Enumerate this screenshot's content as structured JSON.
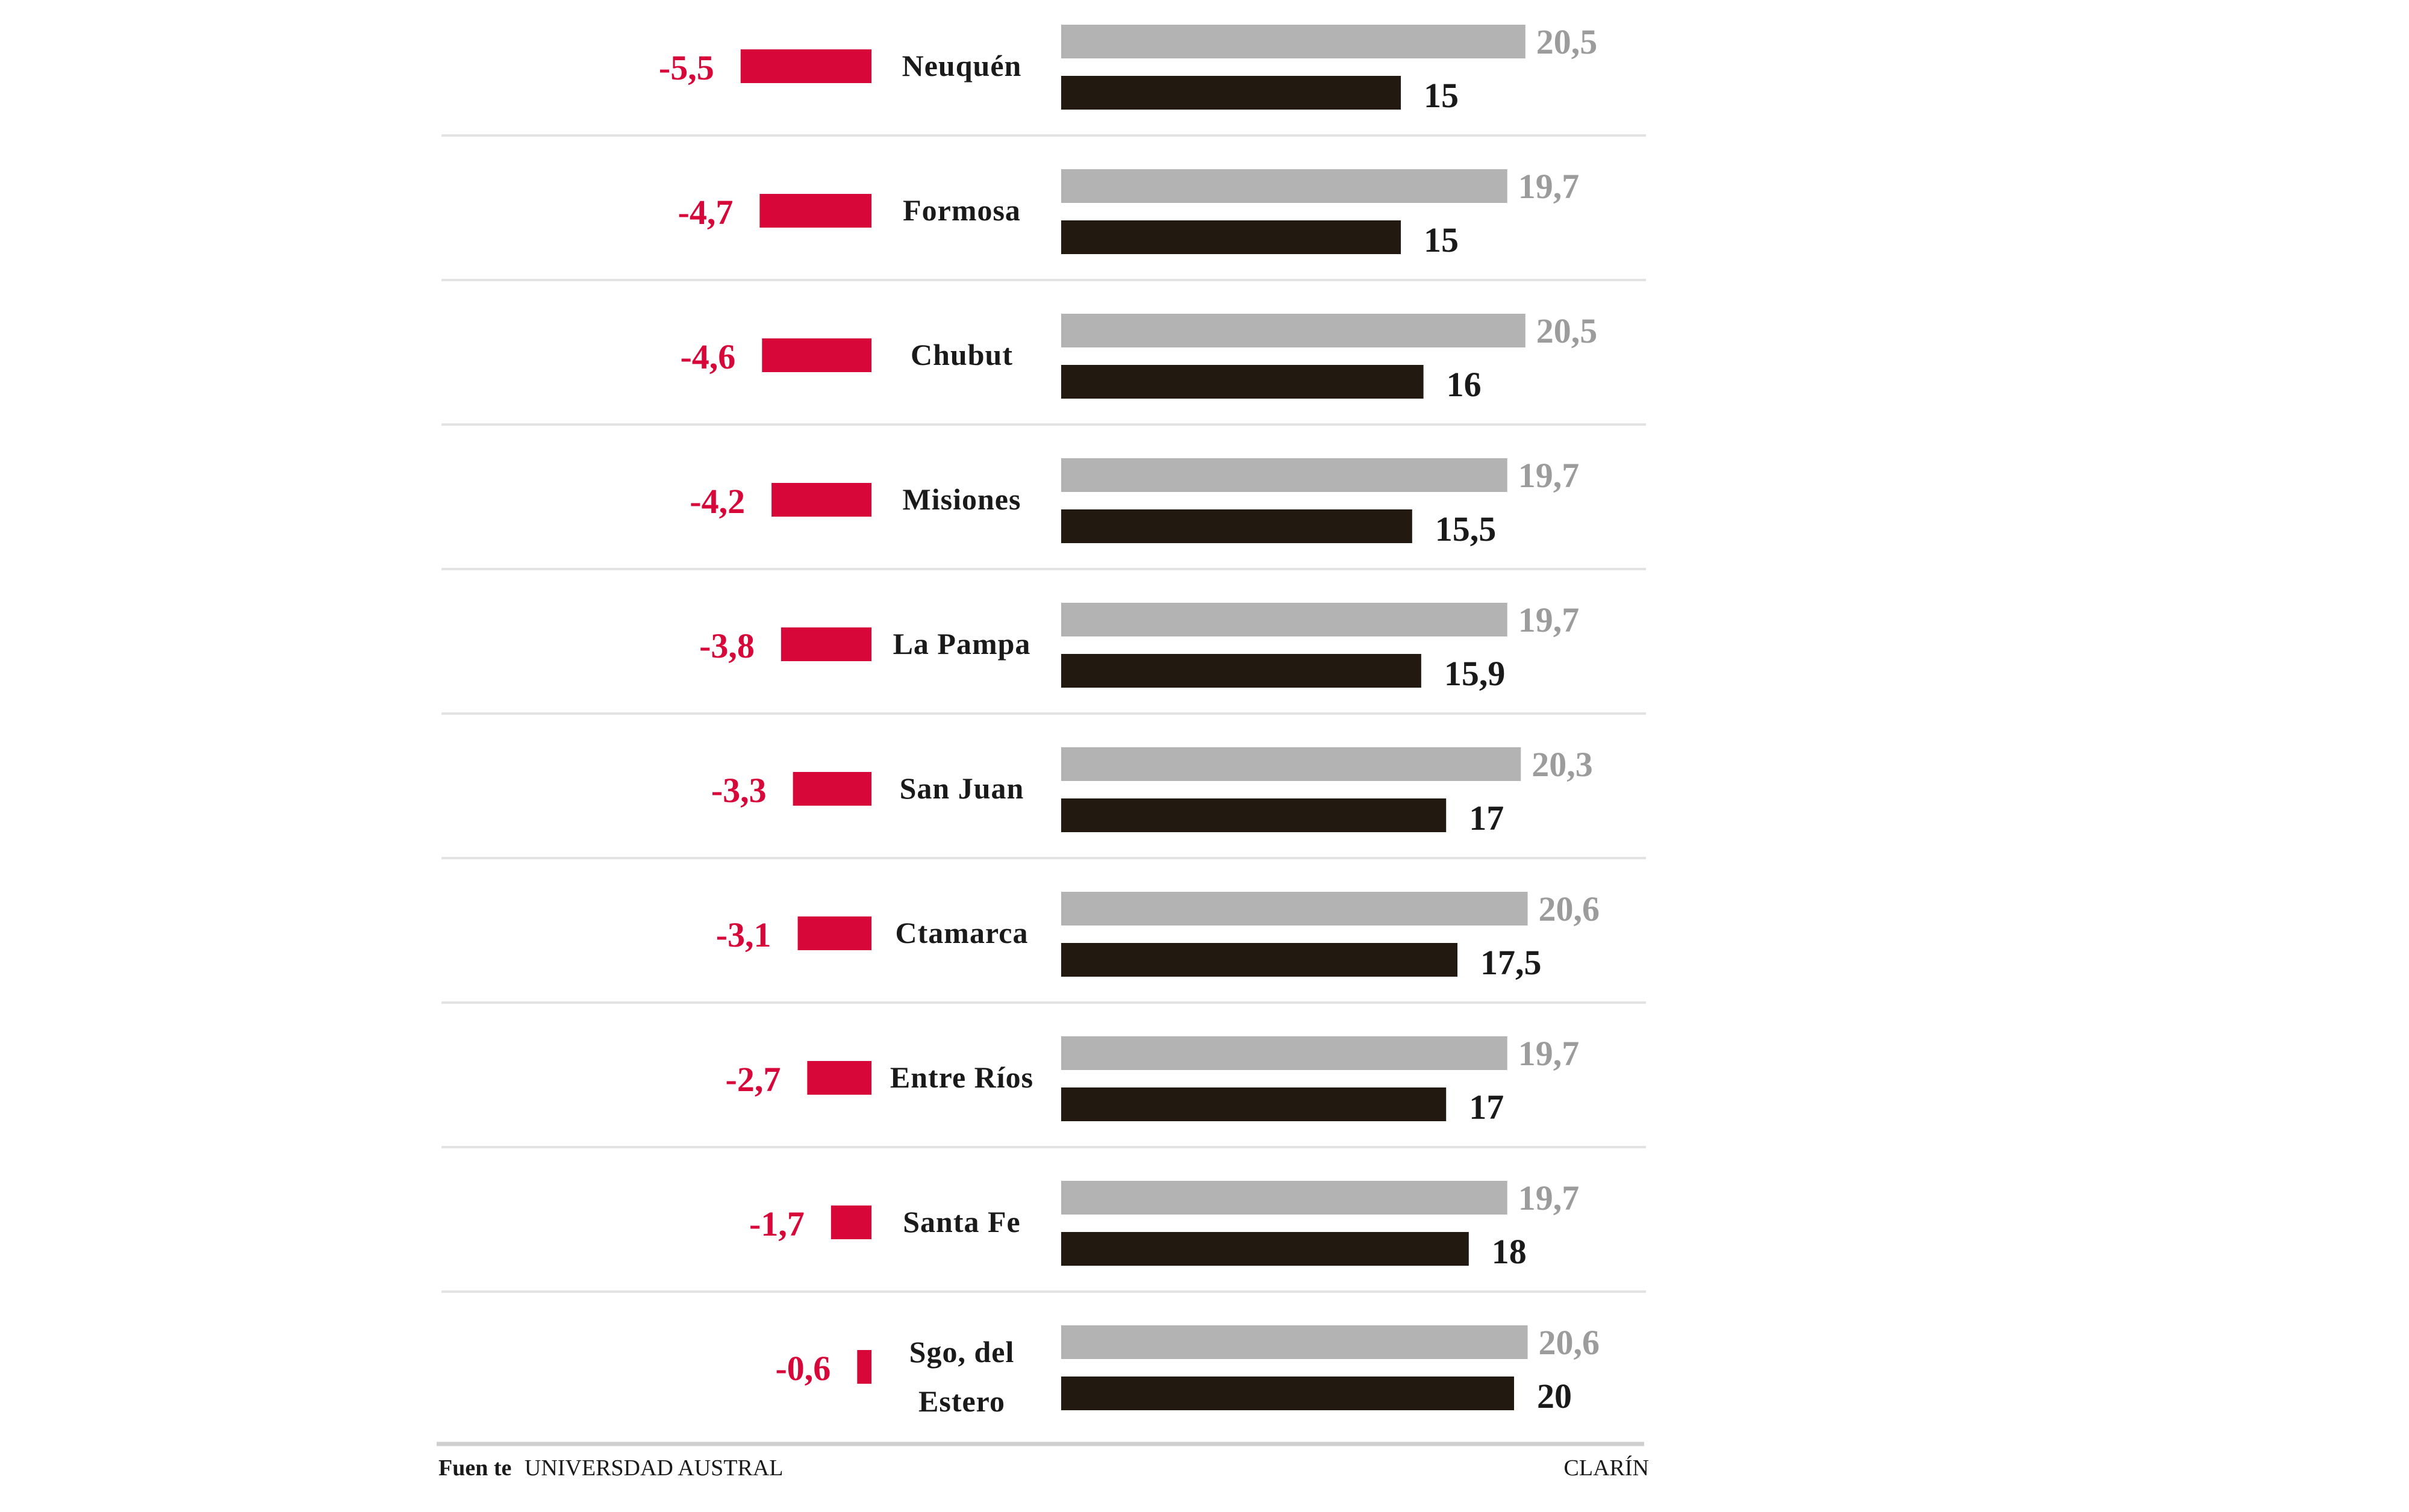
{
  "chart_data": {
    "type": "bar",
    "title": "",
    "categories": [
      [
        "Neuquén"
      ],
      [
        "Formosa"
      ],
      [
        "Chubut"
      ],
      [
        "Misiones"
      ],
      [
        "La Pampa"
      ],
      [
        "San Juan"
      ],
      [
        "Ctamarca"
      ],
      [
        "Entre Ríos"
      ],
      [
        "Santa  Fe"
      ],
      [
        "Sgo, del",
        "Estero"
      ]
    ],
    "series": [
      {
        "values": [
          -5.5,
          -4.7,
          -4.6,
          -4.2,
          -3.8,
          -3.3,
          -3.1,
          -2.7,
          -1.7,
          -0.6
        ],
        "labels": [
          "-5,5",
          "-4,7",
          "-4,6",
          "-4,2",
          "-3,8",
          "-3,3",
          "-3,1",
          "-2,7",
          "-1,7",
          "-0,6"
        ],
        "color": "#d8073a"
      },
      {
        "values": [
          20.5,
          19.7,
          20.5,
          19.7,
          19.7,
          20.3,
          20.6,
          19.7,
          19.7,
          20.6
        ],
        "labels": [
          "20,5",
          "19,7",
          "20,5",
          "19,7",
          "19,7",
          "20,3",
          "20,6",
          "19,7",
          "19,7",
          "20,6"
        ],
        "color": "#b3b3b3"
      },
      {
        "values": [
          15,
          15,
          16,
          15.5,
          15.9,
          17,
          17.5,
          17,
          18,
          20
        ],
        "labels": [
          "15",
          "15",
          "16",
          "15,5",
          "15,9",
          "17",
          "17,5",
          "17",
          "18",
          "20"
        ],
        "color": "#221a11"
      }
    ],
    "grid": false,
    "legend": "none"
  },
  "footer": {
    "source_label": "Fuen te",
    "source_name": "UNIVERSDAD AUSTRAL",
    "credit": "CLARÍN"
  }
}
